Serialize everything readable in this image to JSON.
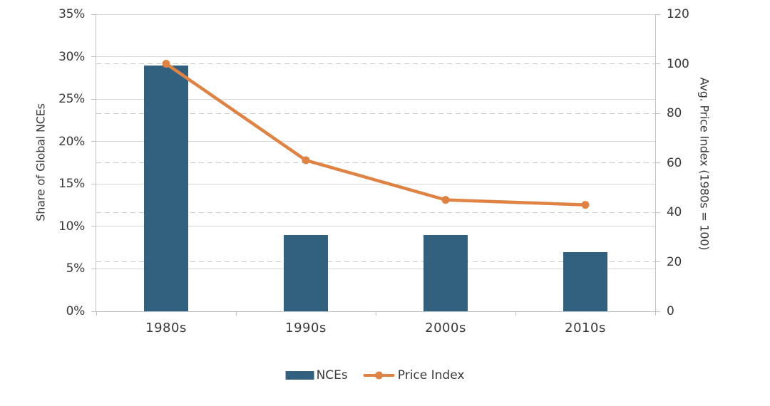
{
  "chart_data": {
    "type": "combo-bar-line",
    "categories": [
      "1980s",
      "1990s",
      "2000s",
      "2010s"
    ],
    "series": [
      {
        "name": "NCEs",
        "type": "bar",
        "axis": "left",
        "values": [
          29,
          9,
          9,
          7
        ],
        "color": "#31617f"
      },
      {
        "name": "Price Index",
        "type": "line",
        "axis": "right",
        "values": [
          100,
          61,
          45,
          43
        ],
        "color": "#de8344"
      }
    ],
    "left_axis": {
      "label": "Share of Global NCEs",
      "min": 0,
      "max": 35,
      "step": 5,
      "tick_labels": [
        "0%",
        "5%",
        "10%",
        "15%",
        "20%",
        "25%",
        "30%",
        "35%"
      ],
      "gridline_style": "solid"
    },
    "right_axis": {
      "label": "Avg. Price Index (1980s = 100)",
      "min": 0,
      "max": 120,
      "step": 20,
      "tick_labels": [
        "0",
        "20",
        "40",
        "60",
        "80",
        "100",
        "120"
      ],
      "gridline_style": "dashed"
    },
    "legend": {
      "items": [
        {
          "label": "NCEs",
          "swatch": "bar-swatch",
          "color": "#31617f"
        },
        {
          "label": "Price Index",
          "swatch": "line-dot-swatch",
          "color": "#de8344"
        }
      ],
      "position": "bottom-center"
    },
    "background": "#ffffff",
    "grid": true,
    "title": ""
  }
}
